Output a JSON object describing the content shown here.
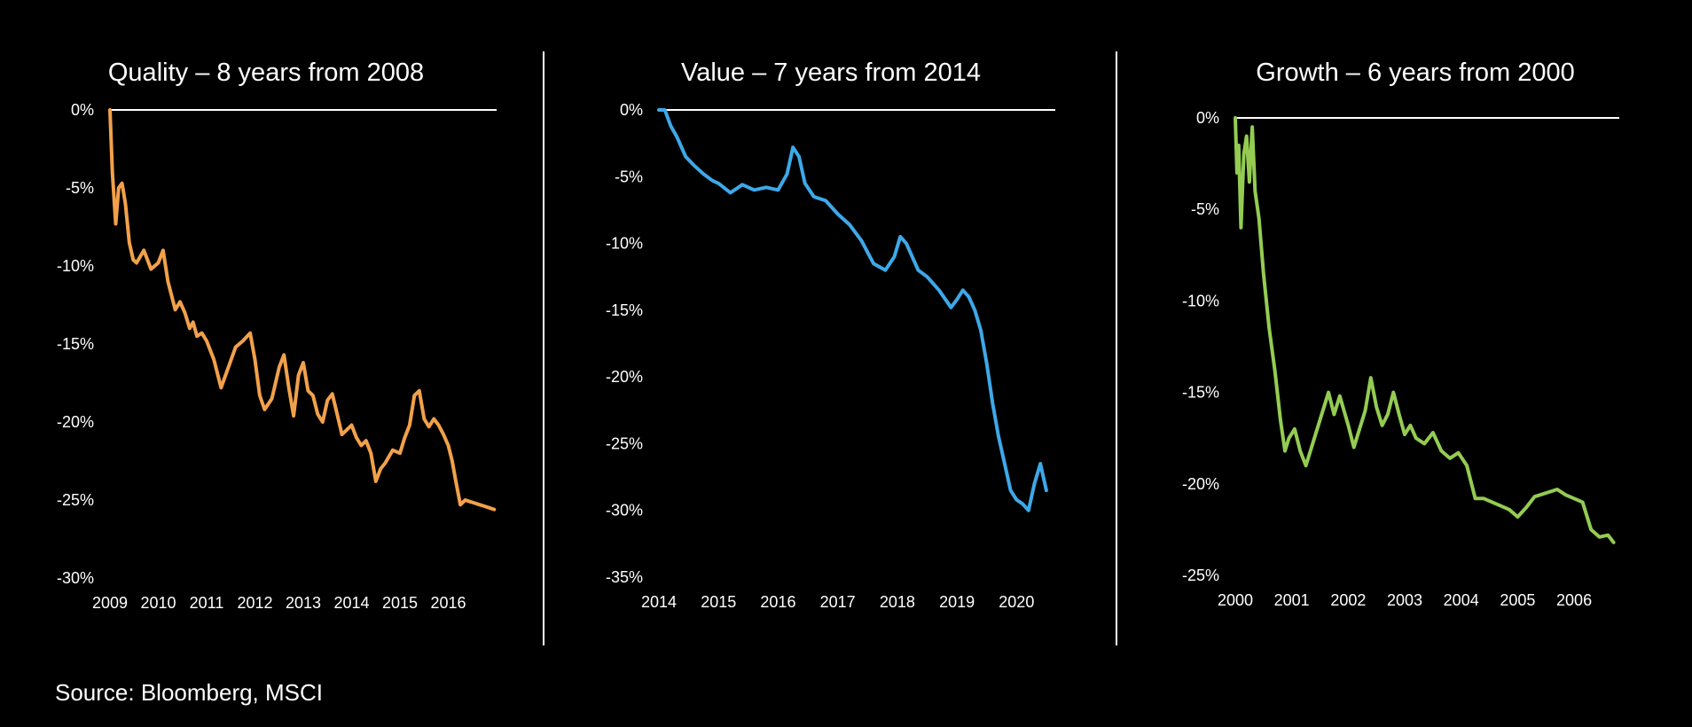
{
  "source": "Source: Bloomberg, MSCI",
  "chart_data": [
    {
      "type": "line",
      "title": "Quality – 8 years from 2008",
      "color": "#f2a14a",
      "xlim": [
        2009.0,
        2017.0
      ],
      "ylim": [
        -30,
        0
      ],
      "yticks": [
        0,
        -5,
        -10,
        -15,
        -20,
        -25,
        -30
      ],
      "ytick_labels": [
        "0%",
        "-5%",
        "-10%",
        "-15%",
        "-20%",
        "-25%",
        "-30%"
      ],
      "xticks": [
        2009,
        2010,
        2011,
        2012,
        2013,
        2014,
        2015,
        2016
      ],
      "xtick_labels": [
        "2009",
        "2010",
        "2011",
        "2012",
        "2013",
        "2014",
        "2015",
        "2016"
      ],
      "reference_line": 0,
      "series": [
        {
          "x": [
            2009.0,
            2009.05,
            2009.12,
            2009.18,
            2009.25,
            2009.32,
            2009.4,
            2009.48,
            2009.55,
            2009.7,
            2009.85,
            2010.0,
            2010.1,
            2010.2,
            2010.35,
            2010.45,
            2010.55,
            2010.65,
            2010.72,
            2010.8,
            2010.9,
            2011.0,
            2011.15,
            2011.3,
            2011.45,
            2011.6,
            2011.75,
            2011.9,
            2012.0,
            2012.1,
            2012.2,
            2012.35,
            2012.5,
            2012.6,
            2012.7,
            2012.8,
            2012.9,
            2013.0,
            2013.1,
            2013.2,
            2013.3,
            2013.4,
            2013.5,
            2013.6,
            2013.7,
            2013.8,
            2013.9,
            2014.0,
            2014.1,
            2014.2,
            2014.3,
            2014.4,
            2014.5,
            2014.6,
            2014.7,
            2014.85,
            2015.0,
            2015.1,
            2015.2,
            2015.3,
            2015.4,
            2015.5,
            2015.6,
            2015.7,
            2015.8,
            2015.9,
            2016.0,
            2016.08,
            2016.15,
            2016.25,
            2016.35,
            2016.45,
            2016.55,
            2016.65,
            2016.75,
            2016.85,
            2016.95
          ],
          "y": [
            0,
            -4,
            -7.3,
            -5.0,
            -4.7,
            -6.0,
            -8.5,
            -9.6,
            -9.8,
            -9.0,
            -10.2,
            -9.8,
            -9.0,
            -11.0,
            -12.8,
            -12.3,
            -13.0,
            -14.0,
            -13.6,
            -14.5,
            -14.3,
            -14.8,
            -16.0,
            -17.8,
            -16.5,
            -15.2,
            -14.8,
            -14.3,
            -16.0,
            -18.3,
            -19.2,
            -18.5,
            -16.5,
            -15.7,
            -17.8,
            -19.6,
            -17.0,
            -16.2,
            -18.0,
            -18.3,
            -19.5,
            -20.0,
            -18.6,
            -18.2,
            -19.5,
            -20.8,
            -20.5,
            -20.2,
            -21.0,
            -21.5,
            -21.2,
            -22.0,
            -23.8,
            -23.0,
            -22.6,
            -21.8,
            -22.0,
            -21.0,
            -20.2,
            -18.3,
            -18.0,
            -19.8,
            -20.3,
            -19.8,
            -20.2,
            -20.8,
            -21.5,
            -22.5,
            -23.7,
            -25.3,
            -25.0,
            -25.1,
            -25.2,
            -25.3,
            -25.4,
            -25.5,
            -25.6
          ]
        }
      ]
    },
    {
      "type": "line",
      "title": "Value – 7 years from 2014",
      "color": "#3ea8e8",
      "xlim": [
        2014.0,
        2020.65
      ],
      "ylim": [
        -35,
        0
      ],
      "yticks": [
        0,
        -5,
        -10,
        -15,
        -20,
        -25,
        -30,
        -35
      ],
      "ytick_labels": [
        "0%",
        "-5%",
        "-10%",
        "-15%",
        "-20%",
        "-25%",
        "-30%",
        "-35%"
      ],
      "xticks": [
        2014,
        2015,
        2016,
        2017,
        2018,
        2019,
        2020
      ],
      "xtick_labels": [
        "2014",
        "2015",
        "2016",
        "2017",
        "2018",
        "2019",
        "2020"
      ],
      "reference_line": 0,
      "series": [
        {
          "x": [
            2014.0,
            2014.1,
            2014.2,
            2014.3,
            2014.45,
            2014.6,
            2014.75,
            2014.9,
            2015.0,
            2015.2,
            2015.4,
            2015.6,
            2015.8,
            2016.0,
            2016.15,
            2016.25,
            2016.35,
            2016.45,
            2016.6,
            2016.8,
            2017.0,
            2017.2,
            2017.4,
            2017.6,
            2017.8,
            2017.95,
            2018.05,
            2018.15,
            2018.25,
            2018.35,
            2018.5,
            2018.7,
            2018.9,
            2019.0,
            2019.1,
            2019.2,
            2019.3,
            2019.4,
            2019.5,
            2019.6,
            2019.7,
            2019.8,
            2019.9,
            2020.0,
            2020.1,
            2020.2,
            2020.3,
            2020.4,
            2020.5
          ],
          "y": [
            0,
            0,
            -1.2,
            -2.0,
            -3.5,
            -4.2,
            -4.8,
            -5.3,
            -5.5,
            -6.2,
            -5.6,
            -6.0,
            -5.8,
            -6.0,
            -4.8,
            -2.8,
            -3.5,
            -5.5,
            -6.5,
            -6.8,
            -7.8,
            -8.6,
            -9.8,
            -11.5,
            -12.0,
            -11.0,
            -9.5,
            -10.0,
            -11.0,
            -12.0,
            -12.5,
            -13.5,
            -14.8,
            -14.2,
            -13.5,
            -14.0,
            -15.0,
            -16.5,
            -19.0,
            -22.0,
            -24.5,
            -26.5,
            -28.5,
            -29.2,
            -29.5,
            -30.0,
            -28.0,
            -26.5,
            -28.5
          ]
        }
      ]
    },
    {
      "type": "line",
      "title": "Growth – 6 years from 2000",
      "color": "#94cc52",
      "xlim": [
        2000.0,
        2006.8
      ],
      "ylim": [
        -25,
        0
      ],
      "yticks": [
        0,
        -5,
        -10,
        -15,
        -20,
        -25
      ],
      "ytick_labels": [
        "0%",
        "-5%",
        "-10%",
        "-15%",
        "-20%",
        "-25%"
      ],
      "xticks": [
        2000,
        2001,
        2002,
        2003,
        2004,
        2005,
        2006
      ],
      "xtick_labels": [
        "2000",
        "2001",
        "2002",
        "2003",
        "2004",
        "2005",
        "2006"
      ],
      "reference_line": 0,
      "series": [
        {
          "x": [
            2000.0,
            2000.03,
            2000.06,
            2000.1,
            2000.15,
            2000.2,
            2000.25,
            2000.3,
            2000.35,
            2000.42,
            2000.5,
            2000.6,
            2000.7,
            2000.8,
            2000.88,
            2000.95,
            2001.05,
            2001.15,
            2001.25,
            2001.35,
            2001.5,
            2001.65,
            2001.75,
            2001.85,
            2002.0,
            2002.1,
            2002.2,
            2002.3,
            2002.4,
            2002.5,
            2002.6,
            2002.7,
            2002.8,
            2002.9,
            2003.0,
            2003.1,
            2003.2,
            2003.35,
            2003.5,
            2003.65,
            2003.8,
            2003.95,
            2004.1,
            2004.25,
            2004.4,
            2004.55,
            2004.7,
            2004.85,
            2005.0,
            2005.15,
            2005.3,
            2005.5,
            2005.7,
            2005.85,
            2006.0,
            2006.15,
            2006.3,
            2006.45,
            2006.6,
            2006.7
          ],
          "y": [
            0,
            -3.0,
            -1.5,
            -6.0,
            -2.0,
            -1.0,
            -3.5,
            -0.5,
            -4.0,
            -5.5,
            -8.5,
            -11.5,
            -13.8,
            -16.5,
            -18.2,
            -17.5,
            -17.0,
            -18.2,
            -19.0,
            -18.0,
            -16.5,
            -15.0,
            -16.2,
            -15.2,
            -16.8,
            -18.0,
            -17.0,
            -16.0,
            -14.2,
            -15.8,
            -16.8,
            -16.2,
            -15.0,
            -16.2,
            -17.3,
            -16.8,
            -17.5,
            -17.8,
            -17.2,
            -18.2,
            -18.6,
            -18.3,
            -19.0,
            -20.8,
            -20.8,
            -21.0,
            -21.2,
            -21.4,
            -21.8,
            -21.3,
            -20.7,
            -20.5,
            -20.3,
            -20.6,
            -20.8,
            -21.0,
            -22.5,
            -22.9,
            -22.8,
            -23.2
          ]
        }
      ]
    }
  ]
}
